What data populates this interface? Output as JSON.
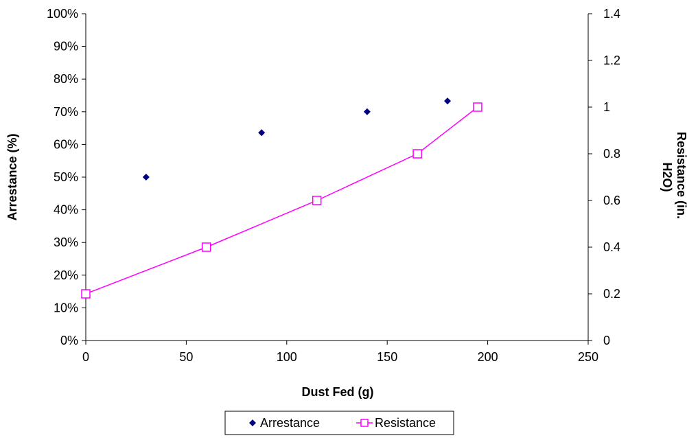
{
  "chart_data": {
    "type": "scatter",
    "title": "",
    "xlabel": "Dust Fed (g)",
    "ylabel": "Arrestance (%)",
    "y2label_lines": [
      "Resistance (in.",
      "H2O)"
    ],
    "xlim": [
      0,
      250
    ],
    "xticks": [
      0,
      50,
      100,
      150,
      200,
      250
    ],
    "xtick_labels": [
      "0",
      "50",
      "100",
      "150",
      "200",
      "250"
    ],
    "ylim": [
      0,
      100
    ],
    "yticks": [
      0,
      10,
      20,
      30,
      40,
      50,
      60,
      70,
      80,
      90,
      100
    ],
    "ytick_labels": [
      "0%",
      "10%",
      "20%",
      "30%",
      "40%",
      "50%",
      "60%",
      "70%",
      "80%",
      "90%",
      "100%"
    ],
    "y2lim": [
      0,
      1.4
    ],
    "y2ticks": [
      0,
      0.2,
      0.4,
      0.6,
      0.8,
      1,
      1.2,
      1.4
    ],
    "y2tick_labels": [
      "0",
      "0.2",
      "0.4",
      "0.6",
      "0.8",
      "1",
      "1.2",
      "1.4"
    ],
    "grid": false,
    "legend": "bottom",
    "series": [
      {
        "name": "Arrestance",
        "axis": "left",
        "style": "markers",
        "marker": "diamond",
        "color": "#000080",
        "x": [
          30,
          87.5,
          140,
          180
        ],
        "y": [
          50,
          63.6,
          70,
          73.3
        ]
      },
      {
        "name": "Resistance",
        "axis": "right",
        "style": "line-markers",
        "marker": "square",
        "color": "#FF00FF",
        "x": [
          0,
          60,
          115,
          165,
          195
        ],
        "y": [
          0.2,
          0.4,
          0.6,
          0.8,
          1.0
        ]
      }
    ]
  }
}
